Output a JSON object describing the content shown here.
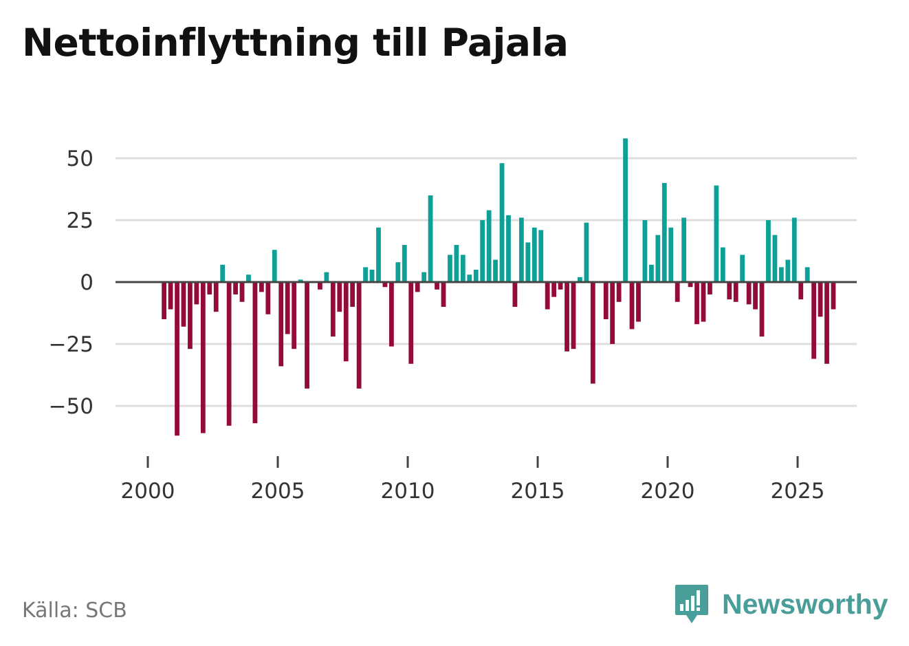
{
  "title": "Nettoinflyttning till Pajala",
  "source": "Källa: SCB",
  "brand": {
    "name": "Newsworthy",
    "icon": "newsworthy-logo-icon"
  },
  "colors": {
    "positive": "#0e9f97",
    "negative": "#930a3b",
    "grid": "#dddddd",
    "zero_line": "#444444",
    "brand": "#4a9e99"
  },
  "chart_data": {
    "type": "bar",
    "title": "Nettoinflyttning till Pajala",
    "xlabel": "",
    "ylabel": "",
    "frequency": "quarterly",
    "start_year": 2000,
    "start_quarter": 3,
    "xlim": [
      2000,
      2027
    ],
    "ylim": [
      -64,
      60
    ],
    "x_ticks": [
      2000,
      2005,
      2010,
      2015,
      2020,
      2025
    ],
    "x_tick_labels": [
      "2000",
      "2005",
      "2010",
      "2015",
      "2020",
      "2025"
    ],
    "y_ticks": [
      50,
      25,
      0,
      -25,
      -50
    ],
    "y_tick_labels": [
      "50",
      "25",
      "0",
      "−25",
      "−50"
    ],
    "grid": true,
    "values": [
      -15,
      -11,
      -62,
      -18,
      -27,
      -9,
      -61,
      -5,
      -12,
      7,
      -58,
      -5,
      -8,
      3,
      -57,
      -4,
      -13,
      13,
      -34,
      -21,
      -27,
      1,
      -43,
      0,
      -3,
      4,
      -22,
      -12,
      -32,
      -10,
      -43,
      6,
      5,
      22,
      -2,
      -26,
      8,
      15,
      -33,
      -4,
      4,
      35,
      -3,
      -10,
      11,
      15,
      11,
      3,
      5,
      25,
      29,
      9,
      48,
      27,
      -10,
      26,
      16,
      22,
      21,
      -11,
      -6,
      -3,
      -28,
      -27,
      2,
      24,
      -41,
      0,
      -15,
      -25,
      -8,
      58,
      -19,
      -16,
      25,
      7,
      19,
      40,
      22,
      -8,
      26,
      -2,
      -17,
      -16,
      -5,
      39,
      14,
      -7,
      -8,
      11,
      -9,
      -11,
      -22,
      25,
      19,
      6,
      9,
      26,
      -7,
      6,
      -31,
      -14,
      -33,
      -11
    ]
  }
}
